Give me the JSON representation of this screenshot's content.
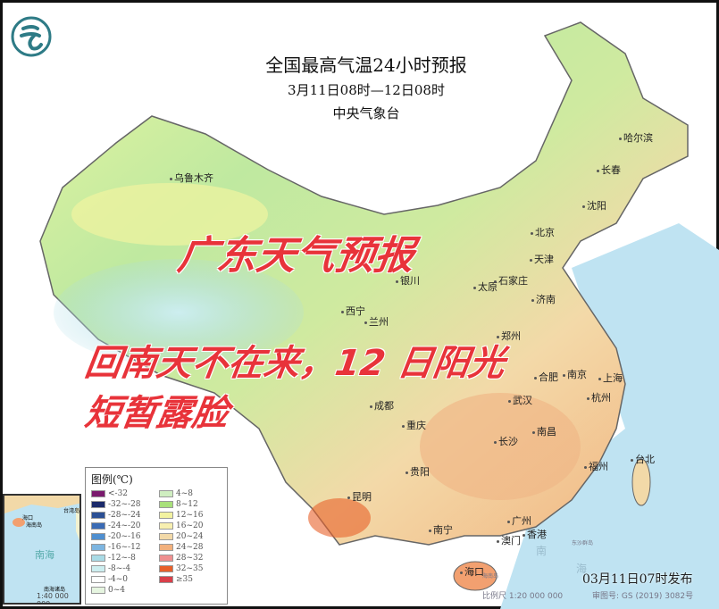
{
  "header": {
    "title": "全国最高气温24小时预报",
    "period": "3月11日08时—12日08时",
    "issuer": "中央气象台",
    "logo_icon": "cma-logo-icon"
  },
  "overlay": {
    "headline": "广东天气预报",
    "line1": "回南天不在来，12  日阳光",
    "line2": "短暂露脸",
    "color": "#e8333a"
  },
  "cities": [
    {
      "name": "哈尔滨"
    },
    {
      "name": "长春"
    },
    {
      "name": "沈阳"
    },
    {
      "name": "乌鲁木齐"
    },
    {
      "name": "北京"
    },
    {
      "name": "天津"
    },
    {
      "name": "银川"
    },
    {
      "name": "太原"
    },
    {
      "name": "石家庄"
    },
    {
      "name": "济南"
    },
    {
      "name": "西宁"
    },
    {
      "name": "兰州"
    },
    {
      "name": "郑州"
    },
    {
      "name": "合肥"
    },
    {
      "name": "南京"
    },
    {
      "name": "上海"
    },
    {
      "name": "武汉"
    },
    {
      "name": "杭州"
    },
    {
      "name": "成都"
    },
    {
      "name": "重庆"
    },
    {
      "name": "长沙"
    },
    {
      "name": "南昌"
    },
    {
      "name": "福州"
    },
    {
      "name": "台北"
    },
    {
      "name": "贵阳"
    },
    {
      "name": "昆明"
    },
    {
      "name": "南宁"
    },
    {
      "name": "广州"
    },
    {
      "name": "澳门"
    },
    {
      "name": "香港"
    },
    {
      "name": "海口"
    }
  ],
  "legend": {
    "title": "图例(℃)",
    "items": [
      {
        "label": "<-32",
        "color": "#7a1a6e"
      },
      {
        "label": "-32~-28",
        "color": "#1b2a6b"
      },
      {
        "label": "-28~-24",
        "color": "#2b4f94"
      },
      {
        "label": "-24~-20",
        "color": "#3a6bb5"
      },
      {
        "label": "-20~-16",
        "color": "#4f8fd0"
      },
      {
        "label": "-16~-12",
        "color": "#7db5e0"
      },
      {
        "label": "-12~-8",
        "color": "#a9dbe6"
      },
      {
        "label": "-8~-4",
        "color": "#cdeef0"
      },
      {
        "label": "-4~0",
        "color": "#ffffff"
      },
      {
        "label": "0~4",
        "color": "#e6f5e0"
      },
      {
        "label": "4~8",
        "color": "#cfeec0"
      },
      {
        "label": "8~12",
        "color": "#a8e07a"
      },
      {
        "label": "12~16",
        "color": "#f2f2a0"
      },
      {
        "label": "16~20",
        "color": "#f7efb0"
      },
      {
        "label": "20~24",
        "color": "#f2d9a8"
      },
      {
        "label": "24~28",
        "color": "#f2b07c"
      },
      {
        "label": "28~32",
        "color": "#ef8f8f"
      },
      {
        "label": "32~35",
        "color": "#e8602a"
      },
      {
        "label": "≥35",
        "color": "#d9404a"
      }
    ]
  },
  "inset": {
    "labels": [
      "海口",
      "海南岛",
      "台湾岛",
      "南海",
      "南海诸岛"
    ],
    "scale": "1:40 000 000"
  },
  "sea_labels": [
    "南",
    "海",
    "东沙群岛",
    "海南岛"
  ],
  "footer": {
    "issued": "03月11日07时发布",
    "scale": "比例尺 1:20 000 000",
    "map_no": "审图号: GS (2019) 3082号"
  }
}
